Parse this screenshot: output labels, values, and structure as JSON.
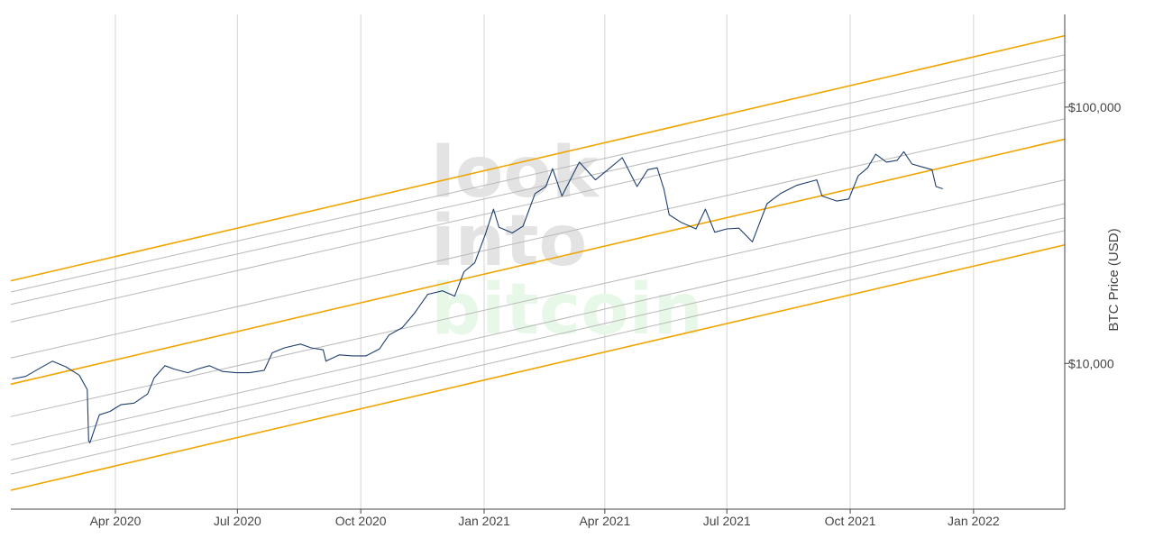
{
  "chart_data": {
    "type": "line",
    "title": "",
    "xlabel": "",
    "ylabel": "BTC Price (USD)",
    "y_scale": "log",
    "ylim": [
      2700,
      230000
    ],
    "xlim": [
      "2020-01-14",
      "2022-03-10"
    ],
    "grid": {
      "x": true,
      "y": false
    },
    "x_tick_labels": [
      "Apr 2020",
      "Jul 2020",
      "Oct 2020",
      "Jan 2021",
      "Apr 2021",
      "Jul 2021",
      "Oct 2021",
      "Jan 2022"
    ],
    "x_ticks": [
      "2020-04-01",
      "2020-07-01",
      "2020-10-01",
      "2021-01-01",
      "2021-04-01",
      "2021-07-01",
      "2021-10-01",
      "2022-01-01"
    ],
    "y_tick_labels": [
      "$10,000",
      "$100,000"
    ],
    "y_ticks": [
      10000,
      100000
    ],
    "watermark": {
      "line1": "look",
      "line2": "into",
      "line3": "bitcoin"
    },
    "colors": {
      "price": "#1f3f6e",
      "band_major": "#f0a500",
      "band_minor": "#b8b8b8",
      "grid": "#d4d4d4",
      "watermark_gray": "#e3e3e3",
      "watermark_green": "#e8f8e8"
    },
    "series": [
      {
        "role": "price",
        "x": [
          "2020-01-15",
          "2020-01-25",
          "2020-02-05",
          "2020-02-14",
          "2020-02-24",
          "2020-03-05",
          "2020-03-11",
          "2020-03-12",
          "2020-03-13",
          "2020-03-20",
          "2020-03-28",
          "2020-04-05",
          "2020-04-15",
          "2020-04-25",
          "2020-04-30",
          "2020-05-08",
          "2020-05-15",
          "2020-05-25",
          "2020-06-01",
          "2020-06-10",
          "2020-06-20",
          "2020-06-30",
          "2020-07-10",
          "2020-07-21",
          "2020-07-27",
          "2020-08-05",
          "2020-08-17",
          "2020-08-25",
          "2020-09-03",
          "2020-09-05",
          "2020-09-15",
          "2020-09-25",
          "2020-10-05",
          "2020-10-15",
          "2020-10-22",
          "2020-11-01",
          "2020-11-10",
          "2020-11-20",
          "2020-12-01",
          "2020-12-10",
          "2020-12-17",
          "2020-12-25",
          "2021-01-02",
          "2021-01-08",
          "2021-01-12",
          "2021-01-22",
          "2021-01-30",
          "2021-02-08",
          "2021-02-16",
          "2021-02-21",
          "2021-02-28",
          "2021-03-13",
          "2021-03-25",
          "2021-04-05",
          "2021-04-14",
          "2021-04-25",
          "2021-05-03",
          "2021-05-10",
          "2021-05-15",
          "2021-05-19",
          "2021-05-28",
          "2021-06-08",
          "2021-06-15",
          "2021-06-22",
          "2021-07-01",
          "2021-07-10",
          "2021-07-20",
          "2021-07-31",
          "2021-08-10",
          "2021-08-22",
          "2021-09-06",
          "2021-09-10",
          "2021-09-21",
          "2021-09-30",
          "2021-10-07",
          "2021-10-14",
          "2021-10-20",
          "2021-10-28",
          "2021-11-05",
          "2021-11-10",
          "2021-11-16",
          "2021-11-26",
          "2021-12-01",
          "2021-12-04",
          "2021-12-09"
        ],
        "y": [
          8700,
          8900,
          9600,
          10200,
          9700,
          9000,
          7900,
          5000,
          4900,
          6300,
          6500,
          6900,
          7000,
          7600,
          8800,
          9800,
          9500,
          9200,
          9500,
          9800,
          9300,
          9200,
          9200,
          9400,
          11000,
          11500,
          11900,
          11500,
          11300,
          10200,
          10800,
          10700,
          10700,
          11400,
          12900,
          13800,
          15700,
          18600,
          19200,
          18300,
          22800,
          24700,
          32000,
          40000,
          34000,
          32300,
          34300,
          46000,
          49000,
          57500,
          45000,
          61000,
          52000,
          58000,
          63500,
          49000,
          57000,
          58000,
          48000,
          38000,
          35500,
          33500,
          40000,
          32500,
          33500,
          33700,
          29800,
          42000,
          46000,
          49500,
          52000,
          45000,
          43000,
          43800,
          54000,
          58000,
          65500,
          61000,
          62000,
          67000,
          60000,
          58000,
          57000,
          49000,
          48000
        ]
      },
      {
        "role": "band_major",
        "name": "",
        "y_start": 21000,
        "y_end": 190000
      },
      {
        "role": "band_minor",
        "name": "",
        "y_start": 19000,
        "y_end": 160000
      },
      {
        "role": "band_minor",
        "name": "",
        "y_start": 17000,
        "y_end": 140000
      },
      {
        "role": "band_minor",
        "name": "",
        "y_start": 14500,
        "y_end": 125000
      },
      {
        "role": "band_minor",
        "name": "",
        "y_start": 10500,
        "y_end": 90000
      },
      {
        "role": "band_major",
        "name": "",
        "y_start": 8300,
        "y_end": 75000
      },
      {
        "role": "band_minor",
        "name": "",
        "y_start": 6200,
        "y_end": 52000
      },
      {
        "role": "band_minor",
        "name": "",
        "y_start": 4800,
        "y_end": 42000
      },
      {
        "role": "band_minor",
        "name": "",
        "y_start": 4200,
        "y_end": 37000
      },
      {
        "role": "band_minor",
        "name": "",
        "y_start": 3700,
        "y_end": 33000
      },
      {
        "role": "band_major",
        "name": "",
        "y_start": 3200,
        "y_end": 29000
      }
    ]
  }
}
